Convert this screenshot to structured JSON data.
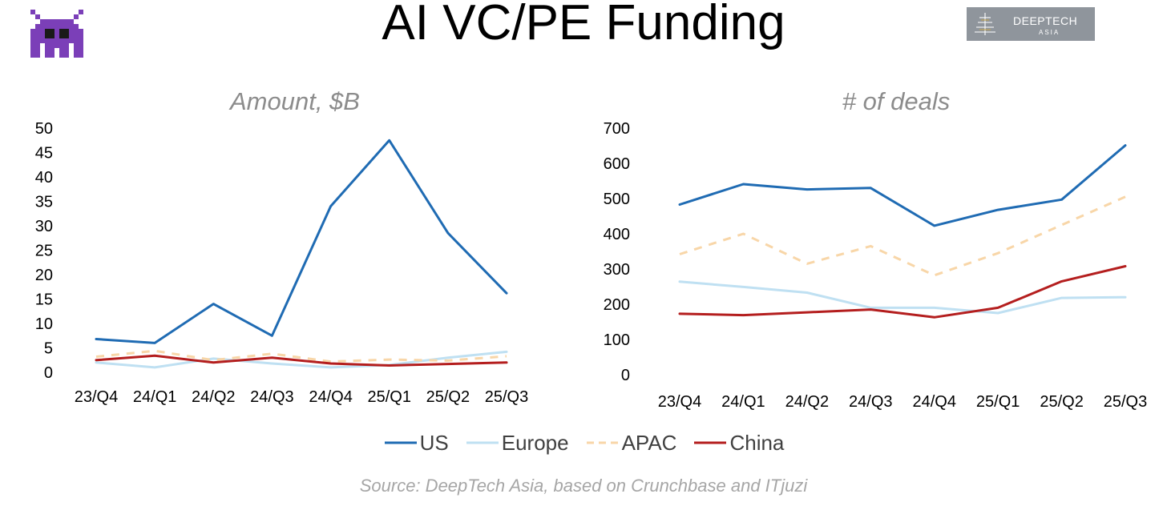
{
  "header": {
    "title": "AI VC/PE Funding",
    "logo_line1": "DEEPTECH",
    "logo_line2": "ASIA",
    "mascot_icon": "alien-monster-icon"
  },
  "colors": {
    "US": "#1F6BB3",
    "Europe": "#BFE0F2",
    "APAC": "#F8D6A8",
    "China": "#B41E1E"
  },
  "legend": [
    {
      "name": "US",
      "style": "solid"
    },
    {
      "name": "Europe",
      "style": "solid"
    },
    {
      "name": "APAC",
      "style": "dashed"
    },
    {
      "name": "China",
      "style": "solid"
    }
  ],
  "source": "Source: DeepTech Asia, based on Crunchbase and ITjuzi",
  "chart_data": [
    {
      "type": "line",
      "title": "Amount, $B",
      "xlabel": "",
      "ylabel": "",
      "categories": [
        "23/Q4",
        "24/Q1",
        "24/Q2",
        "24/Q3",
        "24/Q4",
        "25/Q1",
        "25/Q2",
        "25/Q3"
      ],
      "ylim": [
        0,
        50
      ],
      "yticks": [
        0,
        5,
        10,
        15,
        20,
        25,
        30,
        35,
        40,
        45,
        50
      ],
      "grid": false,
      "series": [
        {
          "name": "US",
          "values": [
            6.8,
            6.0,
            14.0,
            7.5,
            34.0,
            47.5,
            28.5,
            16.2
          ]
        },
        {
          "name": "Europe",
          "values": [
            2.0,
            1.0,
            2.8,
            1.8,
            1.0,
            1.5,
            3.0,
            4.2
          ]
        },
        {
          "name": "APAC",
          "values": [
            3.2,
            4.4,
            2.5,
            3.8,
            2.2,
            2.6,
            2.4,
            3.3
          ]
        },
        {
          "name": "China",
          "values": [
            2.5,
            3.4,
            2.0,
            3.0,
            1.8,
            1.4,
            1.7,
            2.0
          ]
        }
      ]
    },
    {
      "type": "line",
      "title": "# of deals",
      "xlabel": "",
      "ylabel": "",
      "categories": [
        "23/Q4",
        "24/Q1",
        "24/Q2",
        "24/Q3",
        "24/Q4",
        "25/Q1",
        "25/Q2",
        "25/Q3"
      ],
      "ylim": [
        0,
        700
      ],
      "yticks": [
        0,
        100,
        200,
        300,
        400,
        500,
        600,
        700
      ],
      "grid": false,
      "series": [
        {
          "name": "US",
          "values": [
            483,
            541,
            526,
            530,
            423,
            468,
            497,
            651
          ]
        },
        {
          "name": "Europe",
          "values": [
            264,
            249,
            233,
            190,
            190,
            175,
            218,
            220
          ]
        },
        {
          "name": "APAC",
          "values": [
            342,
            400,
            315,
            365,
            282,
            345,
            425,
            505
          ]
        },
        {
          "name": "China",
          "values": [
            173,
            169,
            177,
            185,
            163,
            190,
            265,
            308
          ]
        }
      ]
    }
  ]
}
